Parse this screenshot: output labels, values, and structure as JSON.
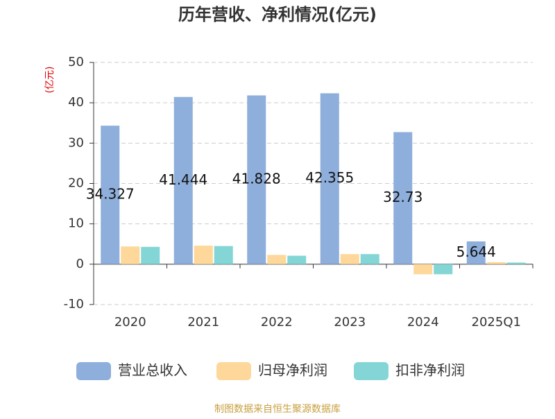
{
  "chart_data": {
    "type": "bar",
    "title": "历年营收、净利情况(亿元)",
    "y_label": "(亿元)",
    "categories": [
      "2020",
      "2021",
      "2022",
      "2023",
      "2024",
      "2025Q1"
    ],
    "series": [
      {
        "name": "营业总收入",
        "color": "#8eaedb",
        "values": [
          34.327,
          41.444,
          41.828,
          42.355,
          32.73,
          5.644
        ],
        "show_labels": true
      },
      {
        "name": "归母净利润",
        "color": "#fdd89a",
        "values": [
          4.4,
          4.6,
          2.3,
          2.5,
          -2.5,
          0.5
        ]
      },
      {
        "name": "扣非净利润",
        "color": "#84d6d6",
        "values": [
          4.3,
          4.5,
          2.1,
          2.5,
          -2.5,
          0.4
        ]
      }
    ],
    "ylim": [
      -10,
      50
    ],
    "yticks": [
      -10,
      0,
      10,
      20,
      30,
      40,
      50
    ],
    "grid": true,
    "source": "制图数据来自恒生聚源数据库"
  }
}
